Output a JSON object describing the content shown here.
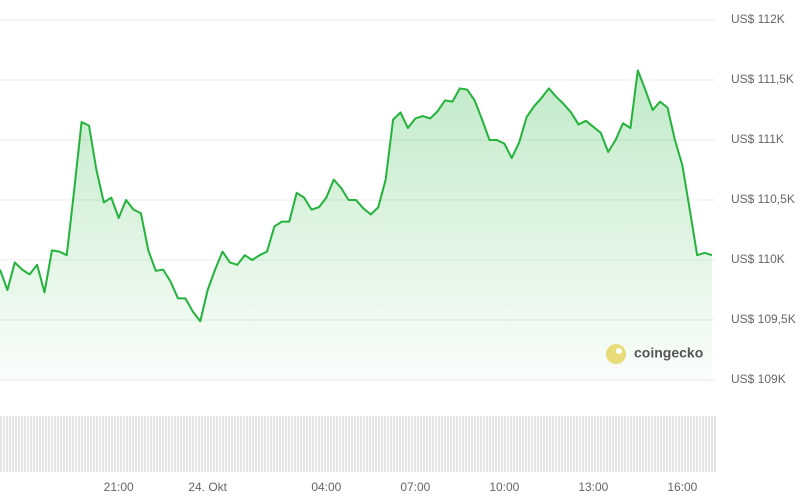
{
  "chart_data": {
    "type": "area",
    "watermark": "coingecko",
    "categories": [
      null,
      null,
      null,
      null,
      null,
      null,
      null,
      null,
      null,
      null,
      null,
      null,
      null,
      null,
      null,
      null,
      "21:00",
      null,
      null,
      null,
      null,
      null,
      null,
      null,
      null,
      null,
      null,
      null,
      "24. Okt",
      null,
      null,
      null,
      null,
      null,
      null,
      null,
      null,
      null,
      null,
      null,
      null,
      null,
      null,
      null,
      "04:00",
      null,
      null,
      null,
      null,
      null,
      null,
      null,
      null,
      null,
      null,
      null,
      "07:00",
      null,
      null,
      null,
      null,
      null,
      null,
      null,
      null,
      null,
      null,
      null,
      "10:00",
      null,
      null,
      null,
      null,
      null,
      null,
      null,
      null,
      null,
      null,
      null,
      "13:00",
      null,
      null,
      null,
      null,
      null,
      null,
      null,
      null,
      null,
      null,
      null,
      "16:00",
      null,
      null,
      null,
      null
    ],
    "values": [
      109920,
      109750,
      109980,
      109920,
      109880,
      109960,
      109730,
      110080,
      110070,
      110040,
      110580,
      111150,
      111120,
      110750,
      110480,
      110520,
      110350,
      110500,
      110420,
      110390,
      110080,
      109910,
      109920,
      109820,
      109680,
      109680,
      109570,
      109490,
      109750,
      109920,
      110070,
      109980,
      109960,
      110040,
      110000,
      110040,
      110070,
      110280,
      110320,
      110320,
      110560,
      110520,
      110420,
      110440,
      110520,
      110670,
      110600,
      110500,
      110500,
      110430,
      110380,
      110440,
      110670,
      111170,
      111230,
      111100,
      111180,
      111200,
      111180,
      111240,
      111330,
      111320,
      111430,
      111420,
      111330,
      111170,
      111000,
      111000,
      110970,
      110850,
      110980,
      111190,
      111280,
      111350,
      111430,
      111360,
      111300,
      111230,
      111130,
      111160,
      111110,
      111060,
      110900,
      111000,
      111140,
      111100,
      111580,
      111420,
      111250,
      111320,
      111270,
      111000,
      110790,
      110420,
      110040,
      110060,
      110040
    ],
    "color": "#22b33a",
    "ylim": [
      108975,
      112167
    ],
    "yticks": [
      {
        "value": 109000,
        "label": "US$ 109K"
      },
      {
        "value": 109500,
        "label": "US$ 109,5K"
      },
      {
        "value": 110000,
        "label": "US$ 110K"
      },
      {
        "value": 110500,
        "label": "US$ 110,5K"
      },
      {
        "value": 111000,
        "label": "US$ 111K"
      },
      {
        "value": 111500,
        "label": "US$ 111,5K"
      },
      {
        "value": 112000,
        "label": "US$ 112K"
      }
    ],
    "grid": true
  }
}
